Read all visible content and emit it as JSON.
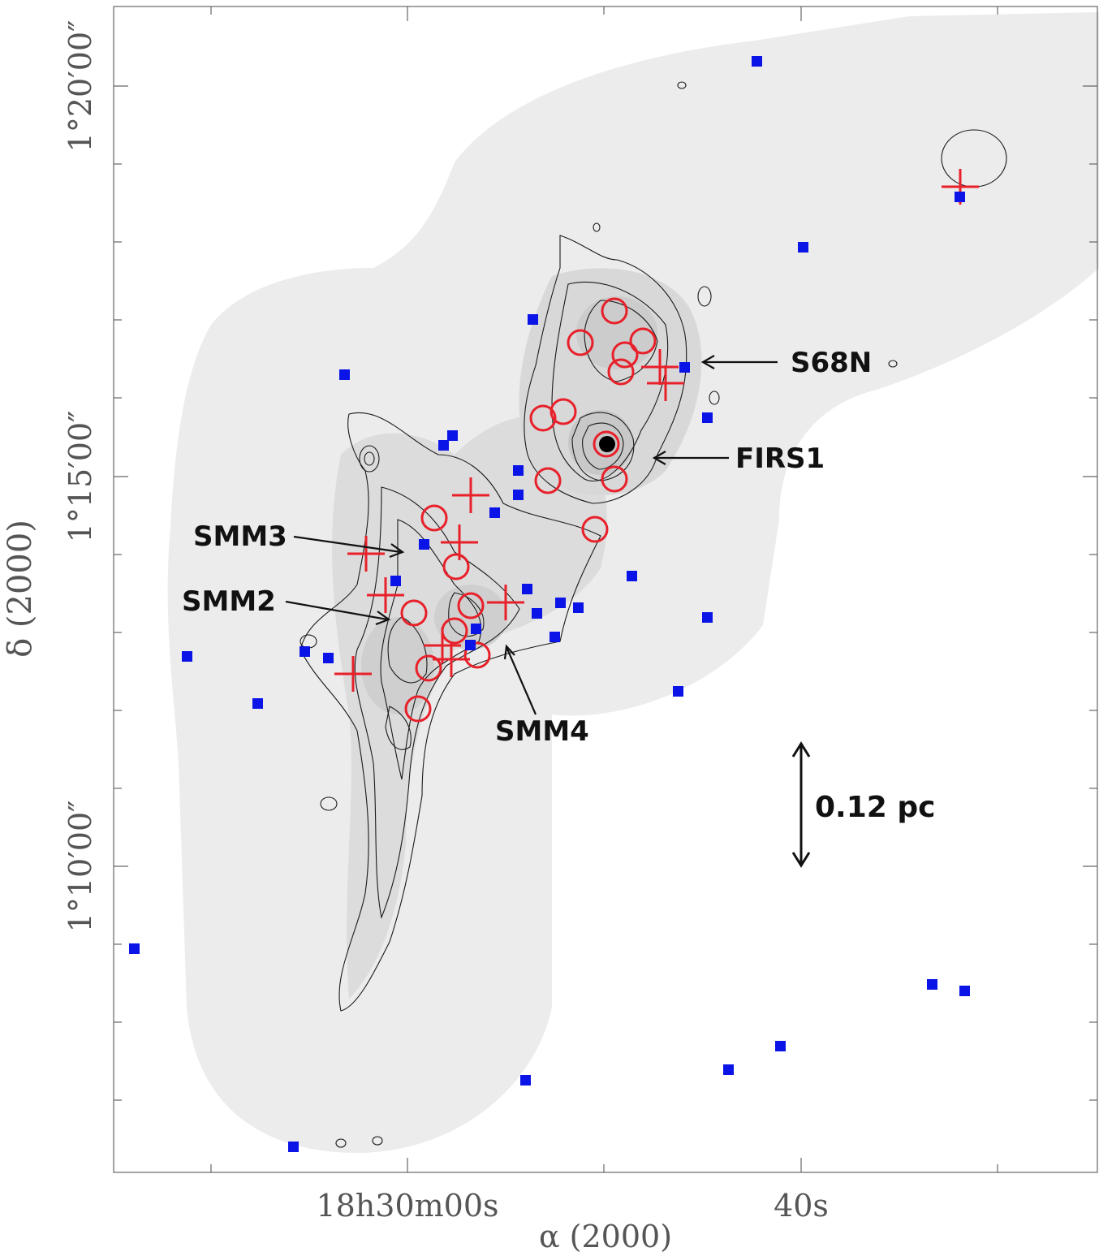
{
  "figure": {
    "y_ticks": [
      "1°20′00″",
      "1°15′00″",
      "1°10′00″"
    ],
    "x_ticks": [
      "18h30m00s",
      "40s"
    ],
    "x_axis_label": "α (2000)",
    "y_axis_label": "δ (2000)",
    "scale_bar_label": "0.12 pc",
    "annotations": [
      "S68N",
      "FIRS1",
      "SMM3",
      "SMM2",
      "SMM4"
    ],
    "colors": {
      "circle": "#e8202a",
      "cross": "#e8202a",
      "square": "#0a14e6",
      "contour": "#1a1a1a",
      "map": "#e9e9e9"
    }
  }
}
